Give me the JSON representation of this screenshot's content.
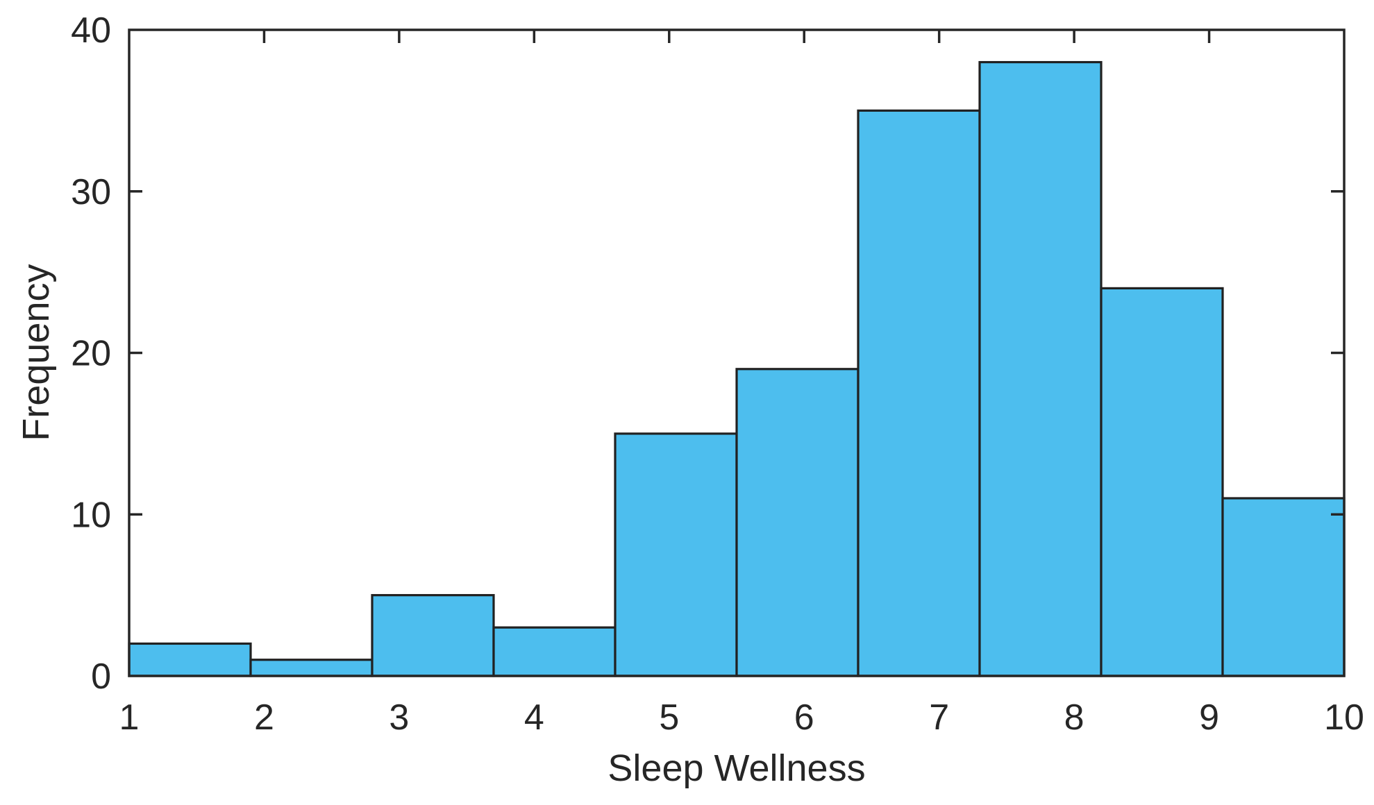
{
  "chart_data": {
    "type": "bar",
    "subtype": "histogram",
    "title": "",
    "xlabel": "Sleep Wellness",
    "ylabel": "Frequency",
    "bin_edges": [
      1,
      1.9,
      2.8,
      3.7,
      4.6,
      5.5,
      6.4,
      7.3,
      8.2,
      9.1,
      10
    ],
    "values": [
      2,
      1,
      5,
      3,
      15,
      19,
      35,
      38,
      24,
      11
    ],
    "xlim": [
      1,
      10
    ],
    "ylim": [
      0,
      40
    ],
    "x_ticks": [
      1,
      2,
      3,
      4,
      5,
      6,
      7,
      8,
      9,
      10
    ],
    "y_ticks": [
      0,
      10,
      20,
      30,
      40
    ],
    "grid": false,
    "legend": null,
    "box": "on",
    "tick_direction": "in",
    "colors": {
      "bar_fill": "#4DBEEE",
      "bar_edge": "#212121",
      "axis": "#262626",
      "text": "#262626",
      "background": "#FFFFFF"
    }
  }
}
